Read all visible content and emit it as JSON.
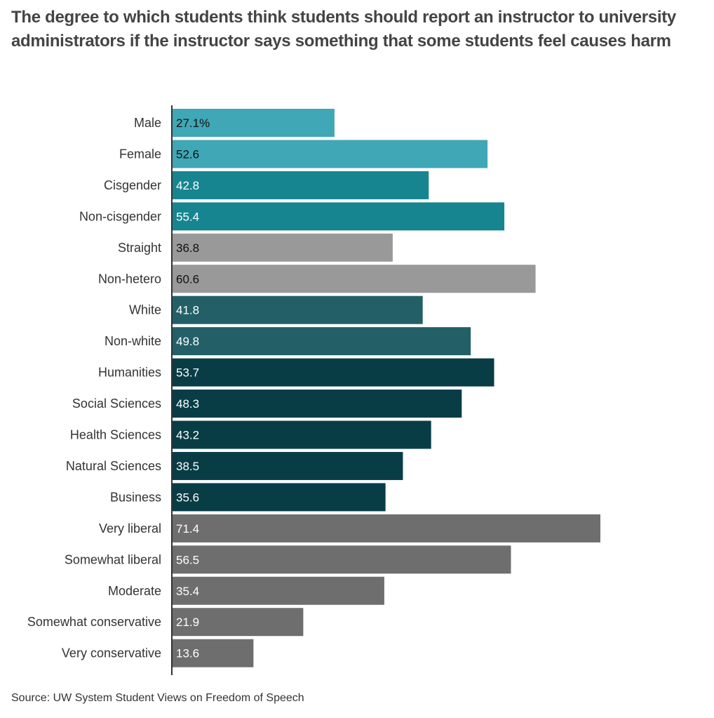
{
  "chart_data": {
    "type": "bar",
    "orientation": "horizontal",
    "title": "The degree to which students think students should report an instructor to university administrators if the instructor says something that some students feel causes harm",
    "source": "Source: UW System Student Views on  Freedom of Speech",
    "categories": [
      "Male",
      "Female",
      "Cisgender",
      "Non-cisgender",
      "Straight",
      "Non-hetero",
      "White",
      "Non-white",
      "Humanities",
      "Social Sciences",
      "Health Sciences",
      "Natural Sciences",
      "Business",
      "Very liberal",
      "Somewhat liberal",
      "Moderate",
      "Somewhat conservative",
      "Very conservative"
    ],
    "values": [
      27.1,
      52.6,
      42.8,
      55.4,
      36.8,
      60.6,
      41.8,
      49.8,
      53.7,
      48.3,
      43.2,
      38.5,
      35.6,
      71.4,
      56.5,
      35.4,
      21.9,
      13.6
    ],
    "value_labels": [
      "27.1%",
      "52.6",
      "42.8",
      "55.4",
      "36.8",
      "60.6",
      "41.8",
      "49.8",
      "53.7",
      "48.3",
      "43.2",
      "38.5",
      "35.6",
      "71.4",
      "56.5",
      "35.4",
      "21.9",
      "13.6"
    ],
    "colors": [
      "#3fa7b5",
      "#3fa7b5",
      "#178590",
      "#178590",
      "#999999",
      "#999999",
      "#235f67",
      "#235f67",
      "#083d46",
      "#083d46",
      "#083d46",
      "#083d46",
      "#083d46",
      "#6e6e6e",
      "#6e6e6e",
      "#6e6e6e",
      "#6e6e6e",
      "#6e6e6e"
    ],
    "label_colors": [
      "#111111",
      "#111111",
      "#ffffff",
      "#ffffff",
      "#111111",
      "#111111",
      "#ffffff",
      "#ffffff",
      "#ffffff",
      "#ffffff",
      "#ffffff",
      "#ffffff",
      "#ffffff",
      "#ffffff",
      "#ffffff",
      "#ffffff",
      "#ffffff",
      "#ffffff"
    ],
    "xlim": [
      0,
      75
    ],
    "grid": false
  }
}
